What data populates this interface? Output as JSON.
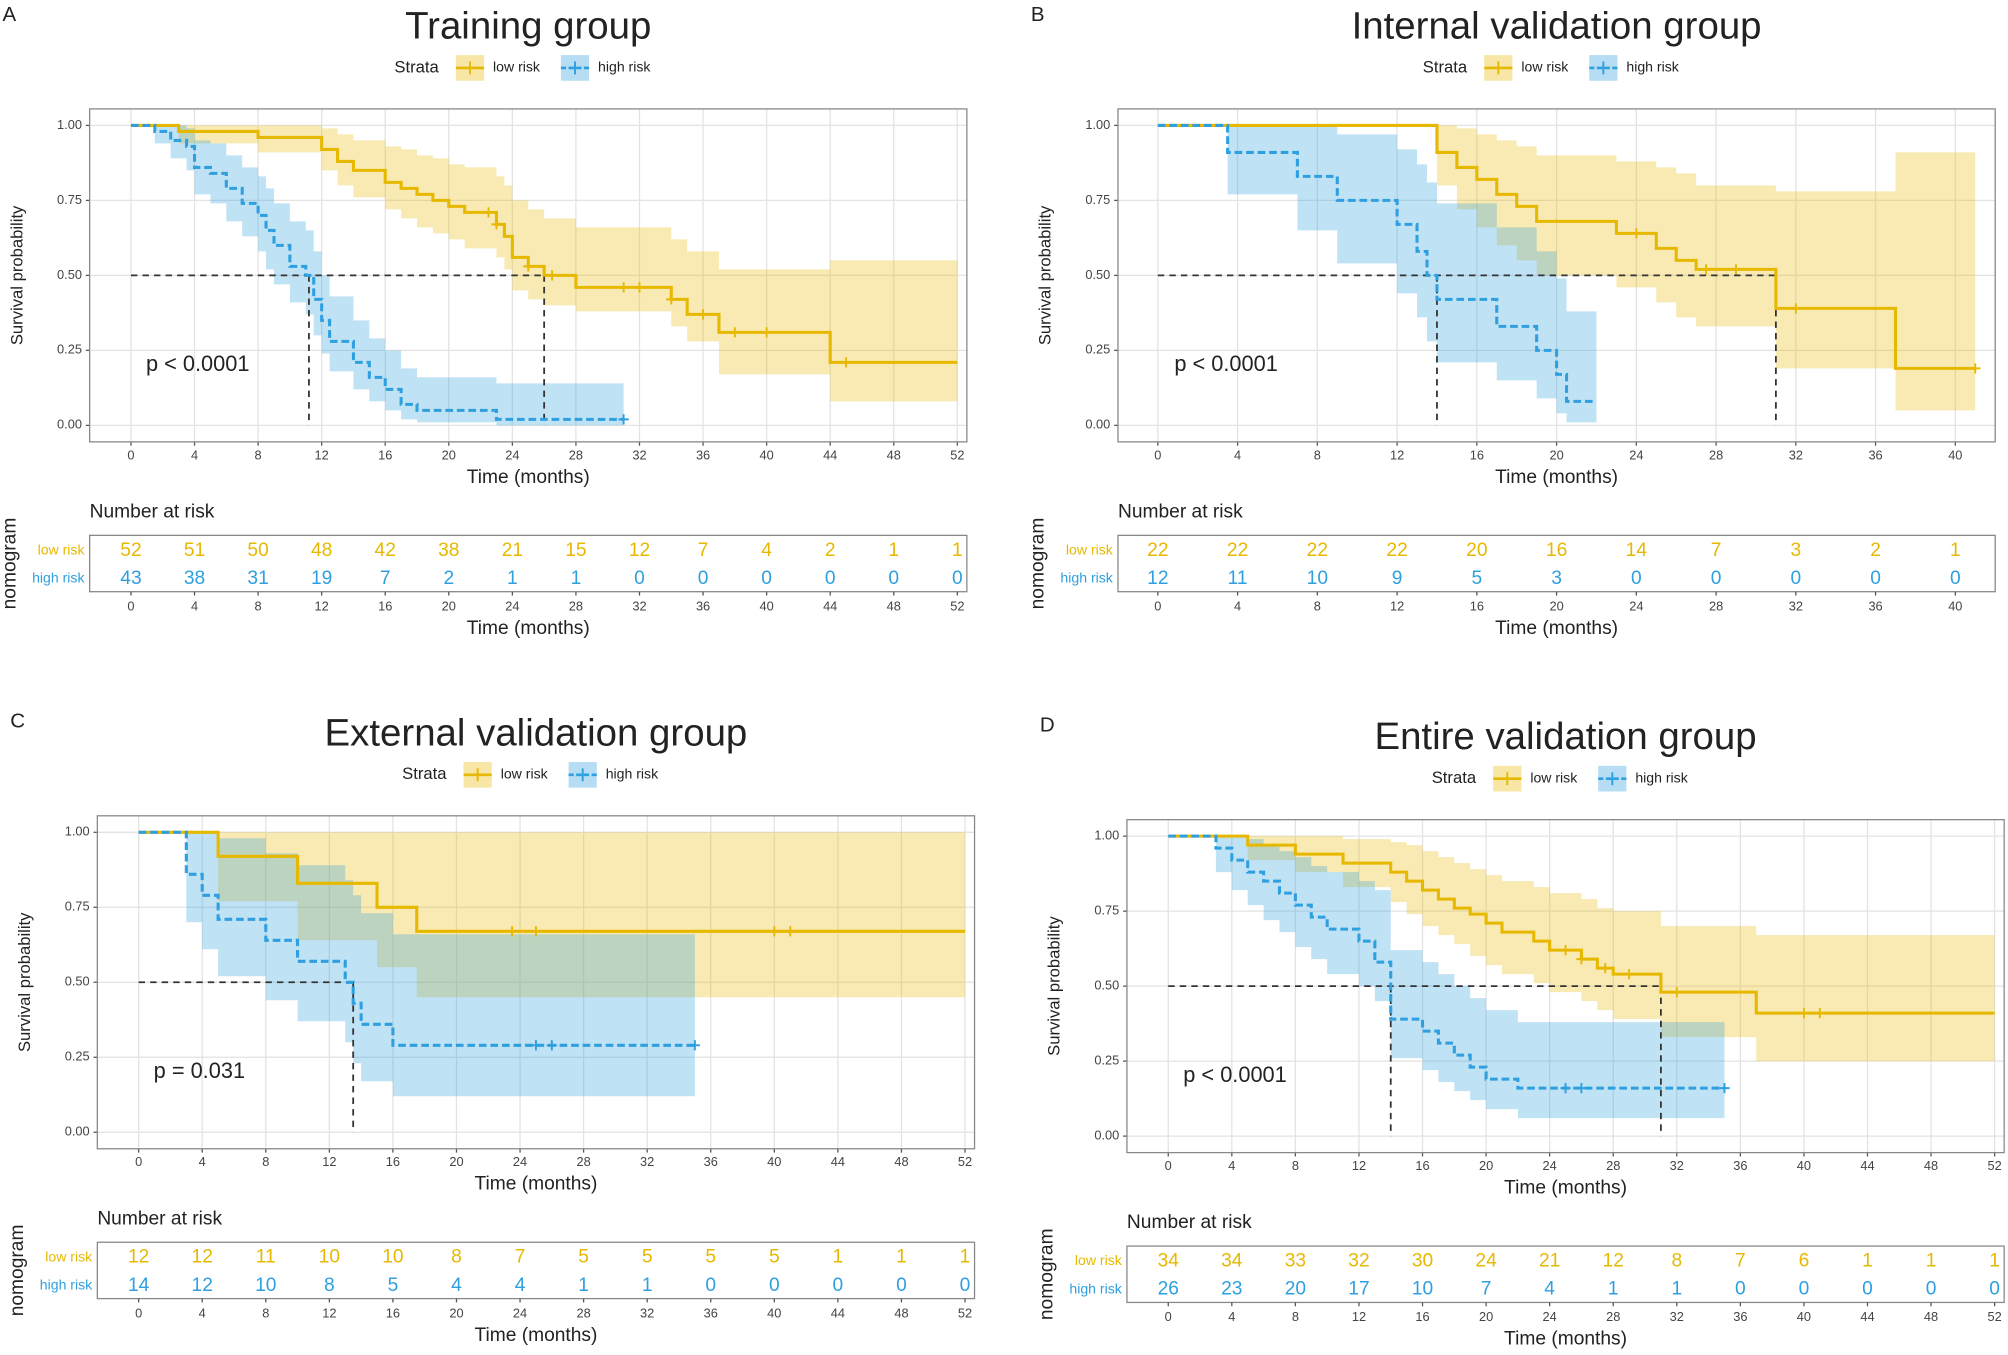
{
  "chart_data": [
    {
      "type": "line",
      "panel_label": "A",
      "title": "Training group",
      "legend_title": "Strata",
      "xlabel": "Time (months)",
      "ylabel": "Survival probability",
      "annotation": "p < 0.0001",
      "xlim": [
        -2.6,
        52.6
      ],
      "ylim": [
        -0.055,
        1.055
      ],
      "xticks": [
        0,
        4,
        8,
        12,
        16,
        20,
        24,
        28,
        32,
        36,
        40,
        44,
        48,
        52
      ],
      "yticks": [
        {
          "value": 0,
          "label": "0.00"
        },
        0.25,
        {
          "value": 0.5,
          "label": "0.50"
        },
        0.75,
        {
          "value": 1,
          "label": "1.00"
        }
      ],
      "median_level": 0.5,
      "medians": [
        11.2,
        26
      ],
      "series": [
        {
          "name": "low risk",
          "color": "#E7B800",
          "x": [
            0,
            3,
            8,
            12,
            13,
            14,
            16,
            17,
            18,
            19,
            20,
            21,
            23,
            23.5,
            24,
            25,
            26,
            28,
            34,
            35,
            37,
            44,
            52
          ],
          "values": [
            1,
            0.98,
            0.96,
            0.92,
            0.88,
            0.85,
            0.81,
            0.79,
            0.77,
            0.75,
            0.73,
            0.71,
            0.67,
            0.63,
            0.56,
            0.53,
            0.5,
            0.46,
            0.42,
            0.37,
            0.31,
            0.21,
            0.21
          ],
          "ci_upper": [
            1,
            1,
            1,
            0.99,
            0.97,
            0.95,
            0.93,
            0.92,
            0.9,
            0.89,
            0.87,
            0.86,
            0.83,
            0.8,
            0.75,
            0.72,
            0.69,
            0.66,
            0.62,
            0.58,
            0.52,
            0.55,
            0.55
          ],
          "ci_lower": [
            1,
            0.94,
            0.91,
            0.85,
            0.8,
            0.76,
            0.72,
            0.69,
            0.66,
            0.64,
            0.62,
            0.59,
            0.56,
            0.52,
            0.45,
            0.42,
            0.4,
            0.38,
            0.33,
            0.28,
            0.17,
            0.08,
            0.08
          ],
          "censored": [
            22.5,
            23,
            25,
            26.5,
            31,
            32,
            34,
            36,
            38,
            40,
            45
          ]
        },
        {
          "name": "high risk",
          "color": "#2E9FDF",
          "x": [
            0,
            1.5,
            2.5,
            3.5,
            4,
            5,
            6,
            7,
            8,
            8.5,
            9,
            10,
            11,
            11.5,
            12,
            12.5,
            14,
            15,
            16,
            17,
            18,
            23,
            31
          ],
          "values": [
            1,
            0.98,
            0.95,
            0.93,
            0.86,
            0.84,
            0.79,
            0.74,
            0.7,
            0.65,
            0.6,
            0.53,
            0.5,
            0.42,
            0.35,
            0.28,
            0.21,
            0.16,
            0.12,
            0.07,
            0.05,
            0.02,
            0.02
          ],
          "ci_upper": [
            1,
            1,
            1,
            0.99,
            0.95,
            0.94,
            0.9,
            0.86,
            0.83,
            0.79,
            0.74,
            0.68,
            0.65,
            0.58,
            0.5,
            0.43,
            0.35,
            0.29,
            0.25,
            0.19,
            0.16,
            0.14,
            0.14
          ],
          "ci_lower": [
            1,
            0.94,
            0.89,
            0.85,
            0.77,
            0.74,
            0.68,
            0.63,
            0.58,
            0.52,
            0.47,
            0.41,
            0.37,
            0.3,
            0.24,
            0.18,
            0.12,
            0.08,
            0.05,
            0.02,
            0.01,
            0,
            0
          ],
          "censored": [
            31
          ]
        }
      ],
      "risk_table": {
        "title": "Number at risk",
        "ylabel": "nomogram",
        "counts": [
          [
            52,
            51,
            50,
            48,
            42,
            38,
            21,
            15,
            12,
            7,
            4,
            2,
            1,
            1
          ],
          [
            43,
            38,
            31,
            19,
            7,
            2,
            1,
            1,
            0,
            0,
            0,
            0,
            0,
            0
          ]
        ]
      }
    },
    {
      "type": "line",
      "panel_label": "B",
      "title": "Internal validation group",
      "legend_title": "Strata",
      "xlabel": "Time (months)",
      "ylabel": "Survival probability",
      "annotation": "p < 0.0001",
      "xlim": [
        -2,
        42
      ],
      "ylim": [
        -0.055,
        1.055
      ],
      "xticks": [
        0,
        4,
        8,
        12,
        16,
        20,
        24,
        28,
        32,
        36,
        40
      ],
      "yticks": [
        {
          "value": 0,
          "label": "0.00"
        },
        0.25,
        {
          "value": 0.5,
          "label": "0.50"
        },
        0.75,
        {
          "value": 1,
          "label": "1.00"
        }
      ],
      "median_level": 0.5,
      "medians": [
        14,
        31
      ],
      "series": [
        {
          "name": "low risk",
          "color": "#E7B800",
          "x": [
            0,
            14,
            15,
            16,
            17,
            18,
            19,
            23,
            25,
            26,
            27,
            31,
            37,
            41
          ],
          "values": [
            1,
            0.91,
            0.86,
            0.82,
            0.77,
            0.73,
            0.68,
            0.64,
            0.59,
            0.55,
            0.52,
            0.39,
            0.19,
            0.19
          ],
          "ci_upper": [
            1,
            1,
            0.99,
            0.97,
            0.95,
            0.93,
            0.9,
            0.88,
            0.86,
            0.84,
            0.8,
            0.78,
            0.91,
            0.91
          ],
          "ci_lower": [
            1,
            0.8,
            0.72,
            0.66,
            0.6,
            0.55,
            0.5,
            0.46,
            0.41,
            0.36,
            0.33,
            0.19,
            0.05,
            0.05
          ],
          "censored": [
            24,
            27.5,
            29,
            32,
            41
          ]
        },
        {
          "name": "high risk",
          "color": "#2E9FDF",
          "x": [
            0,
            3.5,
            7,
            9,
            12,
            13,
            13.5,
            14,
            17,
            19,
            20,
            20.5,
            22
          ],
          "values": [
            1,
            0.91,
            0.83,
            0.75,
            0.67,
            0.58,
            0.5,
            0.42,
            0.33,
            0.25,
            0.17,
            0.08,
            0.08
          ],
          "ci_upper": [
            1,
            1,
            1,
            0.97,
            0.92,
            0.87,
            0.81,
            0.74,
            0.66,
            0.58,
            0.49,
            0.38,
            0.38
          ],
          "ci_lower": [
            1,
            0.77,
            0.65,
            0.54,
            0.44,
            0.36,
            0.28,
            0.21,
            0.15,
            0.09,
            0.04,
            0.01,
            0.01
          ],
          "censored": []
        }
      ],
      "risk_table": {
        "title": "Number at risk",
        "ylabel": "nomogram",
        "counts": [
          [
            22,
            22,
            22,
            22,
            20,
            16,
            14,
            7,
            3,
            2,
            1
          ],
          [
            12,
            11,
            10,
            9,
            5,
            3,
            0,
            0,
            0,
            0,
            0
          ]
        ]
      }
    },
    {
      "type": "line",
      "panel_label": "C",
      "title": "External validation group",
      "legend_title": "Strata",
      "xlabel": "Time (months)",
      "ylabel": "Survival probability",
      "annotation": "p = 0.031",
      "xlim": [
        -2.6,
        52.6
      ],
      "ylim": [
        -0.055,
        1.055
      ],
      "xticks": [
        0,
        4,
        8,
        12,
        16,
        20,
        24,
        28,
        32,
        36,
        40,
        44,
        48,
        52
      ],
      "yticks": [
        {
          "value": 0,
          "label": "0.00"
        },
        0.25,
        {
          "value": 0.5,
          "label": "0.50"
        },
        0.75,
        {
          "value": 1,
          "label": "1.00"
        }
      ],
      "median_level": 0.5,
      "medians": [
        13.5
      ],
      "series": [
        {
          "name": "low risk",
          "color": "#E7B800",
          "x": [
            0,
            5,
            10,
            15,
            17.5,
            52
          ],
          "values": [
            1,
            0.92,
            0.83,
            0.75,
            0.67,
            0.67
          ],
          "ci_upper": [
            1,
            1,
            1,
            1,
            1,
            1
          ],
          "ci_lower": [
            1,
            0.77,
            0.64,
            0.55,
            0.45,
            0.45
          ],
          "censored": [
            23.5,
            25,
            40,
            41
          ]
        },
        {
          "name": "high risk",
          "color": "#2E9FDF",
          "x": [
            0,
            3,
            4,
            5,
            8,
            10,
            13,
            13.5,
            14,
            16,
            35
          ],
          "values": [
            1,
            0.86,
            0.79,
            0.71,
            0.64,
            0.57,
            0.5,
            0.43,
            0.36,
            0.29,
            0.29
          ],
          "ci_upper": [
            1,
            1,
            1,
            0.98,
            0.93,
            0.89,
            0.84,
            0.79,
            0.73,
            0.66,
            0.66
          ],
          "ci_lower": [
            1,
            0.7,
            0.61,
            0.52,
            0.44,
            0.37,
            0.3,
            0.23,
            0.17,
            0.12,
            0.12
          ],
          "censored": [
            25,
            26,
            35
          ]
        }
      ],
      "risk_table": {
        "title": "Number at risk",
        "ylabel": "nomogram",
        "counts": [
          [
            12,
            12,
            11,
            10,
            10,
            8,
            7,
            5,
            5,
            5,
            5,
            1,
            1,
            1
          ],
          [
            14,
            12,
            10,
            8,
            5,
            4,
            4,
            1,
            1,
            0,
            0,
            0,
            0,
            0
          ]
        ]
      }
    },
    {
      "type": "line",
      "panel_label": "D",
      "title": "Entire validation group",
      "legend_title": "Strata",
      "xlabel": "Time (months)",
      "ylabel": "Survival probability",
      "annotation": "p < 0.0001",
      "xlim": [
        -2.6,
        52.6
      ],
      "ylim": [
        -0.055,
        1.055
      ],
      "xticks": [
        0,
        4,
        8,
        12,
        16,
        20,
        24,
        28,
        32,
        36,
        40,
        44,
        48,
        52
      ],
      "yticks": [
        {
          "value": 0,
          "label": "0.00"
        },
        0.25,
        {
          "value": 0.5,
          "label": "0.50"
        },
        0.75,
        {
          "value": 1,
          "label": "1.00"
        }
      ],
      "median_level": 0.5,
      "medians": [
        14,
        31
      ],
      "series": [
        {
          "name": "low risk",
          "color": "#E7B800",
          "x": [
            0,
            5,
            8,
            11,
            14,
            15,
            16,
            17,
            18,
            19,
            20,
            21,
            23,
            24,
            26,
            27,
            28,
            31,
            37,
            52
          ],
          "values": [
            1,
            0.97,
            0.94,
            0.91,
            0.88,
            0.85,
            0.82,
            0.79,
            0.76,
            0.74,
            0.71,
            0.68,
            0.65,
            0.62,
            0.59,
            0.56,
            0.54,
            0.48,
            0.41,
            0.41
          ],
          "ci_upper": [
            1,
            1,
            1,
            0.99,
            0.98,
            0.97,
            0.95,
            0.93,
            0.91,
            0.89,
            0.87,
            0.85,
            0.83,
            0.81,
            0.79,
            0.76,
            0.75,
            0.7,
            0.67,
            0.67
          ],
          "ci_lower": [
            1,
            0.92,
            0.88,
            0.83,
            0.78,
            0.74,
            0.7,
            0.67,
            0.64,
            0.6,
            0.57,
            0.54,
            0.51,
            0.48,
            0.45,
            0.42,
            0.39,
            0.33,
            0.25,
            0.25
          ],
          "censored": [
            25,
            26,
            27.5,
            29,
            32,
            40,
            41
          ]
        },
        {
          "name": "high risk",
          "color": "#2E9FDF",
          "x": [
            0,
            3,
            4,
            5,
            6,
            7,
            8,
            9,
            10,
            12,
            13,
            14,
            16,
            17,
            18,
            19,
            20,
            22,
            35
          ],
          "values": [
            1,
            0.96,
            0.92,
            0.88,
            0.85,
            0.81,
            0.77,
            0.73,
            0.69,
            0.65,
            0.58,
            0.39,
            0.35,
            0.31,
            0.27,
            0.23,
            0.19,
            0.16,
            0.16
          ],
          "ci_upper": [
            1,
            1,
            1,
            0.99,
            0.97,
            0.95,
            0.93,
            0.9,
            0.88,
            0.85,
            0.82,
            0.62,
            0.58,
            0.54,
            0.5,
            0.46,
            0.42,
            0.38,
            0.38
          ],
          "ci_lower": [
            1,
            0.88,
            0.82,
            0.77,
            0.72,
            0.68,
            0.63,
            0.59,
            0.54,
            0.5,
            0.45,
            0.26,
            0.22,
            0.18,
            0.15,
            0.12,
            0.09,
            0.06,
            0.06
          ],
          "censored": [
            25,
            26,
            35
          ]
        }
      ],
      "risk_table": {
        "title": "Number at risk",
        "ylabel": "nomogram",
        "counts": [
          [
            34,
            34,
            33,
            32,
            30,
            24,
            21,
            12,
            8,
            7,
            6,
            1,
            1,
            1
          ],
          [
            26,
            23,
            20,
            17,
            10,
            7,
            4,
            1,
            1,
            0,
            0,
            0,
            0,
            0
          ]
        ]
      }
    }
  ]
}
